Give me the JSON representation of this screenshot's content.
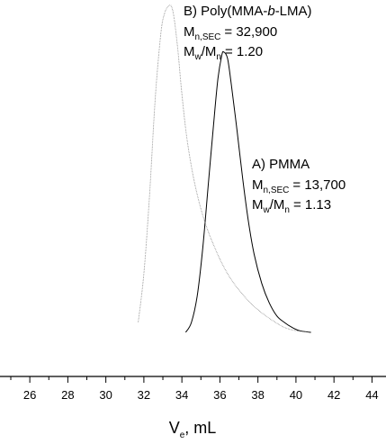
{
  "chart_data": {
    "type": "line",
    "xlabel": {
      "main": "V",
      "sub": "e",
      "rest": ", mL"
    },
    "xlim": [
      25,
      44.5
    ],
    "xticks": [
      26,
      28,
      30,
      32,
      34,
      36,
      38,
      40,
      42,
      44
    ],
    "yaxis_visible": false,
    "grid": false,
    "series": [
      {
        "name": "A) PMMA",
        "stroke": "#000000",
        "x": [
          34.2,
          34.5,
          34.8,
          35.1,
          35.4,
          35.7,
          35.9,
          36.1,
          36.2,
          36.4,
          36.6,
          36.9,
          37.2,
          37.5,
          37.8,
          38.2,
          38.6,
          39.0,
          39.4,
          39.8,
          40.2,
          40.8
        ],
        "y": [
          0.0,
          0.03,
          0.11,
          0.26,
          0.46,
          0.66,
          0.78,
          0.85,
          0.86,
          0.84,
          0.76,
          0.62,
          0.47,
          0.34,
          0.24,
          0.15,
          0.09,
          0.05,
          0.03,
          0.015,
          0.005,
          0.0
        ]
      },
      {
        "name": "B) Poly(MMA-b-LMA)",
        "stroke": "#777777",
        "x": [
          31.7,
          32.0,
          32.3,
          32.6,
          32.9,
          33.1,
          33.3,
          33.45,
          33.6,
          33.8,
          34.0,
          34.3,
          34.7,
          35.2,
          35.8,
          36.4,
          37.0,
          37.6,
          38.2,
          38.8,
          39.4,
          40.0,
          40.8
        ],
        "y": [
          0.03,
          0.18,
          0.42,
          0.72,
          0.92,
          0.98,
          1.0,
          1.0,
          0.96,
          0.86,
          0.73,
          0.58,
          0.45,
          0.34,
          0.25,
          0.18,
          0.13,
          0.09,
          0.06,
          0.035,
          0.015,
          0.005,
          0.0
        ]
      }
    ],
    "annotations": {
      "A": {
        "title": "A) PMMA",
        "mn_value": "= 13,700",
        "mwmn_value": "= 1.13"
      },
      "B": {
        "title_pre": "B) Poly(MMA-",
        "title_italic": "b",
        "title_post": "-LMA)",
        "mn_value": "= 32,900",
        "mwmn_value": "= 1.20"
      },
      "mn_main": "M",
      "mn_sub": "n,SEC",
      "mw_main": "M",
      "mw_sub": "w",
      "slash": "/",
      "n_main": "M",
      "n_sub": "n"
    }
  }
}
